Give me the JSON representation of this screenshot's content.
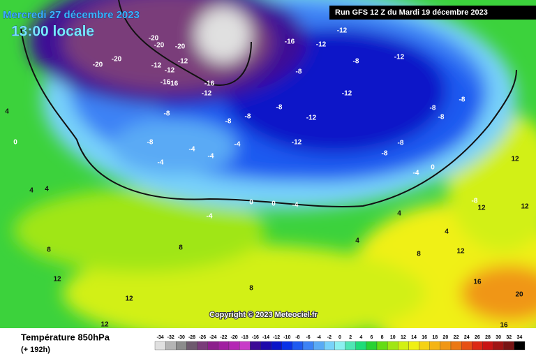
{
  "header": {
    "date": "Mercredi 27 décembre 2023",
    "time": "13:00 locale",
    "run": "Run GFS 12 Z du Mardi 19 décembre 2023"
  },
  "copyright": "Copyright © 2023 Meteociel.fr",
  "legend": {
    "title": "Température 850hPa",
    "lead": "(+ 192h)",
    "scale": [
      -34,
      -32,
      -30,
      -28,
      -26,
      -24,
      -22,
      -20,
      -18,
      -16,
      -14,
      -12,
      -10,
      -8,
      -6,
      -4,
      -2,
      0,
      2,
      4,
      6,
      8,
      10,
      12,
      14,
      16,
      18,
      20,
      22,
      24,
      26,
      28,
      30,
      32,
      34
    ],
    "colors": [
      "#e0e0e0",
      "#b4b4b4",
      "#8c8c8c",
      "#6e5a6e",
      "#7a3c7a",
      "#8c1e8c",
      "#a01ea0",
      "#b428b4",
      "#c83cc8",
      "#3c0a96",
      "#1e0aaa",
      "#0a14c8",
      "#0a32e6",
      "#1e5af0",
      "#3c82f5",
      "#5aaaf5",
      "#78d2fa",
      "#8cf0f0",
      "#50e6b4",
      "#1edc78",
      "#28d232",
      "#64dc14",
      "#a0e614",
      "#d2f014",
      "#f0f014",
      "#f5d214",
      "#f5b414",
      "#f09614",
      "#eb7814",
      "#e65014",
      "#dc2814",
      "#c81414",
      "#a01414",
      "#781414",
      "#000000"
    ]
  },
  "map_labels": [
    -20,
    -20,
    -20,
    -20,
    -20,
    -12,
    -12,
    -12,
    -16,
    -16,
    -12,
    -16,
    -16,
    -12,
    -12,
    -8,
    -12,
    -8,
    -12,
    -8,
    -12,
    -8,
    -8,
    -8,
    -8,
    -4,
    -4,
    -4,
    -4,
    -12,
    -8,
    -8,
    -8,
    -8,
    -8,
    -4,
    0,
    0,
    0,
    -4,
    4,
    4,
    0,
    4,
    -4,
    8,
    8,
    12,
    12,
    12,
    8,
    4,
    8,
    12,
    12,
    12,
    16,
    20,
    16,
    12,
    -8,
    4,
    4
  ]
}
